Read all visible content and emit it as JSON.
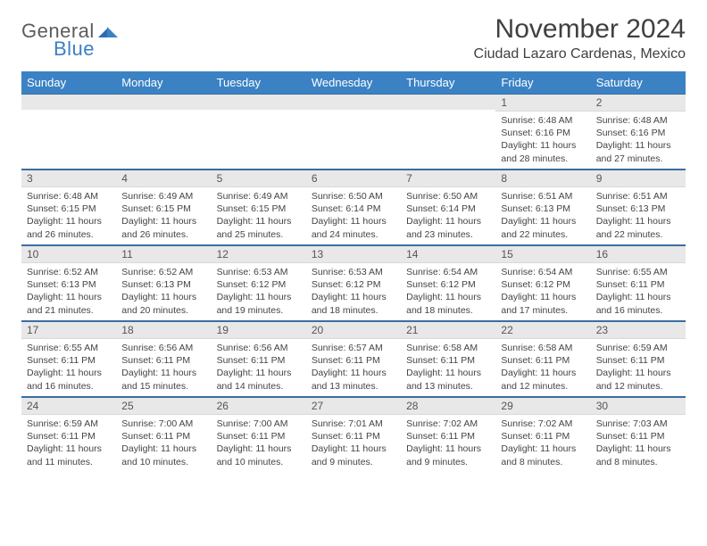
{
  "logo": {
    "line1": "General",
    "line2": "Blue"
  },
  "title": "November 2024",
  "location": "Ciudad Lazaro Cardenas, Mexico",
  "colors": {
    "header_bg": "#3b82c4",
    "header_text": "#ffffff",
    "daynum_bg": "#e8e8e8",
    "row_divider": "#3b6ea0",
    "text": "#444444",
    "title_text": "#404040",
    "logo_gray": "#5c5c5c",
    "logo_blue": "#3b7fc4"
  },
  "day_headers": [
    "Sunday",
    "Monday",
    "Tuesday",
    "Wednesday",
    "Thursday",
    "Friday",
    "Saturday"
  ],
  "weeks": [
    [
      null,
      null,
      null,
      null,
      null,
      {
        "n": "1",
        "sr": "Sunrise: 6:48 AM",
        "ss": "Sunset: 6:16 PM",
        "dl1": "Daylight: 11 hours",
        "dl2": "and 28 minutes."
      },
      {
        "n": "2",
        "sr": "Sunrise: 6:48 AM",
        "ss": "Sunset: 6:16 PM",
        "dl1": "Daylight: 11 hours",
        "dl2": "and 27 minutes."
      }
    ],
    [
      {
        "n": "3",
        "sr": "Sunrise: 6:48 AM",
        "ss": "Sunset: 6:15 PM",
        "dl1": "Daylight: 11 hours",
        "dl2": "and 26 minutes."
      },
      {
        "n": "4",
        "sr": "Sunrise: 6:49 AM",
        "ss": "Sunset: 6:15 PM",
        "dl1": "Daylight: 11 hours",
        "dl2": "and 26 minutes."
      },
      {
        "n": "5",
        "sr": "Sunrise: 6:49 AM",
        "ss": "Sunset: 6:15 PM",
        "dl1": "Daylight: 11 hours",
        "dl2": "and 25 minutes."
      },
      {
        "n": "6",
        "sr": "Sunrise: 6:50 AM",
        "ss": "Sunset: 6:14 PM",
        "dl1": "Daylight: 11 hours",
        "dl2": "and 24 minutes."
      },
      {
        "n": "7",
        "sr": "Sunrise: 6:50 AM",
        "ss": "Sunset: 6:14 PM",
        "dl1": "Daylight: 11 hours",
        "dl2": "and 23 minutes."
      },
      {
        "n": "8",
        "sr": "Sunrise: 6:51 AM",
        "ss": "Sunset: 6:13 PM",
        "dl1": "Daylight: 11 hours",
        "dl2": "and 22 minutes."
      },
      {
        "n": "9",
        "sr": "Sunrise: 6:51 AM",
        "ss": "Sunset: 6:13 PM",
        "dl1": "Daylight: 11 hours",
        "dl2": "and 22 minutes."
      }
    ],
    [
      {
        "n": "10",
        "sr": "Sunrise: 6:52 AM",
        "ss": "Sunset: 6:13 PM",
        "dl1": "Daylight: 11 hours",
        "dl2": "and 21 minutes."
      },
      {
        "n": "11",
        "sr": "Sunrise: 6:52 AM",
        "ss": "Sunset: 6:13 PM",
        "dl1": "Daylight: 11 hours",
        "dl2": "and 20 minutes."
      },
      {
        "n": "12",
        "sr": "Sunrise: 6:53 AM",
        "ss": "Sunset: 6:12 PM",
        "dl1": "Daylight: 11 hours",
        "dl2": "and 19 minutes."
      },
      {
        "n": "13",
        "sr": "Sunrise: 6:53 AM",
        "ss": "Sunset: 6:12 PM",
        "dl1": "Daylight: 11 hours",
        "dl2": "and 18 minutes."
      },
      {
        "n": "14",
        "sr": "Sunrise: 6:54 AM",
        "ss": "Sunset: 6:12 PM",
        "dl1": "Daylight: 11 hours",
        "dl2": "and 18 minutes."
      },
      {
        "n": "15",
        "sr": "Sunrise: 6:54 AM",
        "ss": "Sunset: 6:12 PM",
        "dl1": "Daylight: 11 hours",
        "dl2": "and 17 minutes."
      },
      {
        "n": "16",
        "sr": "Sunrise: 6:55 AM",
        "ss": "Sunset: 6:11 PM",
        "dl1": "Daylight: 11 hours",
        "dl2": "and 16 minutes."
      }
    ],
    [
      {
        "n": "17",
        "sr": "Sunrise: 6:55 AM",
        "ss": "Sunset: 6:11 PM",
        "dl1": "Daylight: 11 hours",
        "dl2": "and 16 minutes."
      },
      {
        "n": "18",
        "sr": "Sunrise: 6:56 AM",
        "ss": "Sunset: 6:11 PM",
        "dl1": "Daylight: 11 hours",
        "dl2": "and 15 minutes."
      },
      {
        "n": "19",
        "sr": "Sunrise: 6:56 AM",
        "ss": "Sunset: 6:11 PM",
        "dl1": "Daylight: 11 hours",
        "dl2": "and 14 minutes."
      },
      {
        "n": "20",
        "sr": "Sunrise: 6:57 AM",
        "ss": "Sunset: 6:11 PM",
        "dl1": "Daylight: 11 hours",
        "dl2": "and 13 minutes."
      },
      {
        "n": "21",
        "sr": "Sunrise: 6:58 AM",
        "ss": "Sunset: 6:11 PM",
        "dl1": "Daylight: 11 hours",
        "dl2": "and 13 minutes."
      },
      {
        "n": "22",
        "sr": "Sunrise: 6:58 AM",
        "ss": "Sunset: 6:11 PM",
        "dl1": "Daylight: 11 hours",
        "dl2": "and 12 minutes."
      },
      {
        "n": "23",
        "sr": "Sunrise: 6:59 AM",
        "ss": "Sunset: 6:11 PM",
        "dl1": "Daylight: 11 hours",
        "dl2": "and 12 minutes."
      }
    ],
    [
      {
        "n": "24",
        "sr": "Sunrise: 6:59 AM",
        "ss": "Sunset: 6:11 PM",
        "dl1": "Daylight: 11 hours",
        "dl2": "and 11 minutes."
      },
      {
        "n": "25",
        "sr": "Sunrise: 7:00 AM",
        "ss": "Sunset: 6:11 PM",
        "dl1": "Daylight: 11 hours",
        "dl2": "and 10 minutes."
      },
      {
        "n": "26",
        "sr": "Sunrise: 7:00 AM",
        "ss": "Sunset: 6:11 PM",
        "dl1": "Daylight: 11 hours",
        "dl2": "and 10 minutes."
      },
      {
        "n": "27",
        "sr": "Sunrise: 7:01 AM",
        "ss": "Sunset: 6:11 PM",
        "dl1": "Daylight: 11 hours",
        "dl2": "and 9 minutes."
      },
      {
        "n": "28",
        "sr": "Sunrise: 7:02 AM",
        "ss": "Sunset: 6:11 PM",
        "dl1": "Daylight: 11 hours",
        "dl2": "and 9 minutes."
      },
      {
        "n": "29",
        "sr": "Sunrise: 7:02 AM",
        "ss": "Sunset: 6:11 PM",
        "dl1": "Daylight: 11 hours",
        "dl2": "and 8 minutes."
      },
      {
        "n": "30",
        "sr": "Sunrise: 7:03 AM",
        "ss": "Sunset: 6:11 PM",
        "dl1": "Daylight: 11 hours",
        "dl2": "and 8 minutes."
      }
    ]
  ]
}
